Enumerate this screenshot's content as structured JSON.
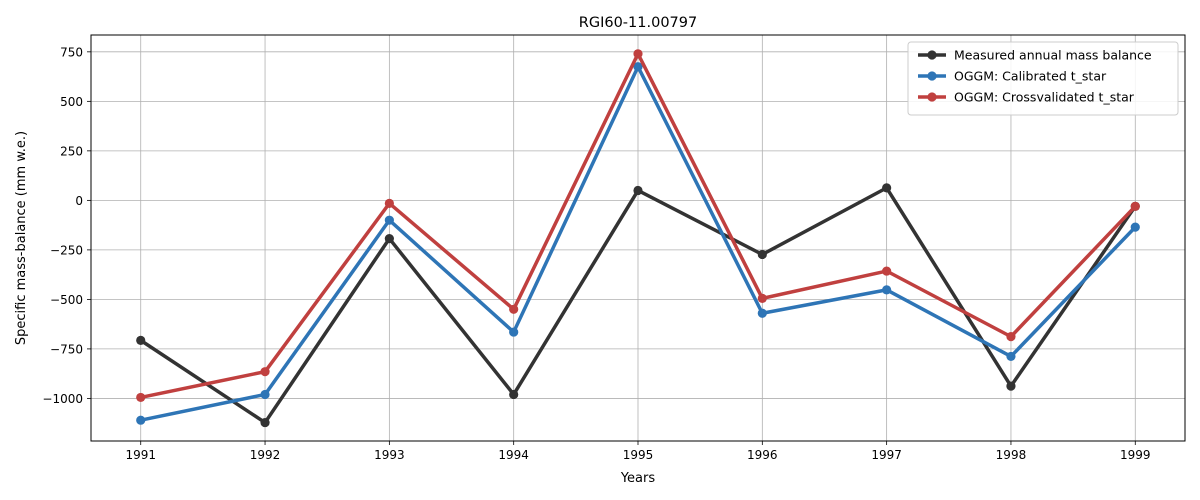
{
  "chart_data": {
    "type": "line",
    "title": "RGI60-11.00797",
    "xlabel": "Years",
    "ylabel": "Specific mass-balance (mm w.e.)",
    "x": [
      1991,
      1992,
      1993,
      1994,
      1995,
      1996,
      1997,
      1998,
      1999
    ],
    "xlim": [
      1990.6,
      1999.4
    ],
    "ylim": [
      -1215,
      835
    ],
    "yticks": [
      -1000,
      -750,
      -500,
      -250,
      0,
      250,
      500,
      750
    ],
    "ytick_labels": [
      "−1000",
      "−750",
      "−500",
      "−250",
      "0",
      "250",
      "500",
      "750"
    ],
    "grid": true,
    "legend_position": "top-right",
    "series": [
      {
        "name": "Measured annual mass balance",
        "color": "#333333",
        "values": [
          -707,
          -1122,
          -193,
          -980,
          50,
          -273,
          63,
          -938,
          -30
        ]
      },
      {
        "name": "OGGM: Calibrated t_star",
        "color": "#2e75b6",
        "values": [
          -1110,
          -980,
          -100,
          -665,
          675,
          -570,
          -452,
          -788,
          -135
        ]
      },
      {
        "name": "OGGM: Crossvalidated t_star",
        "color": "#c0403f",
        "values": [
          -995,
          -865,
          -15,
          -550,
          740,
          -495,
          -357,
          -688,
          -30
        ]
      }
    ]
  }
}
